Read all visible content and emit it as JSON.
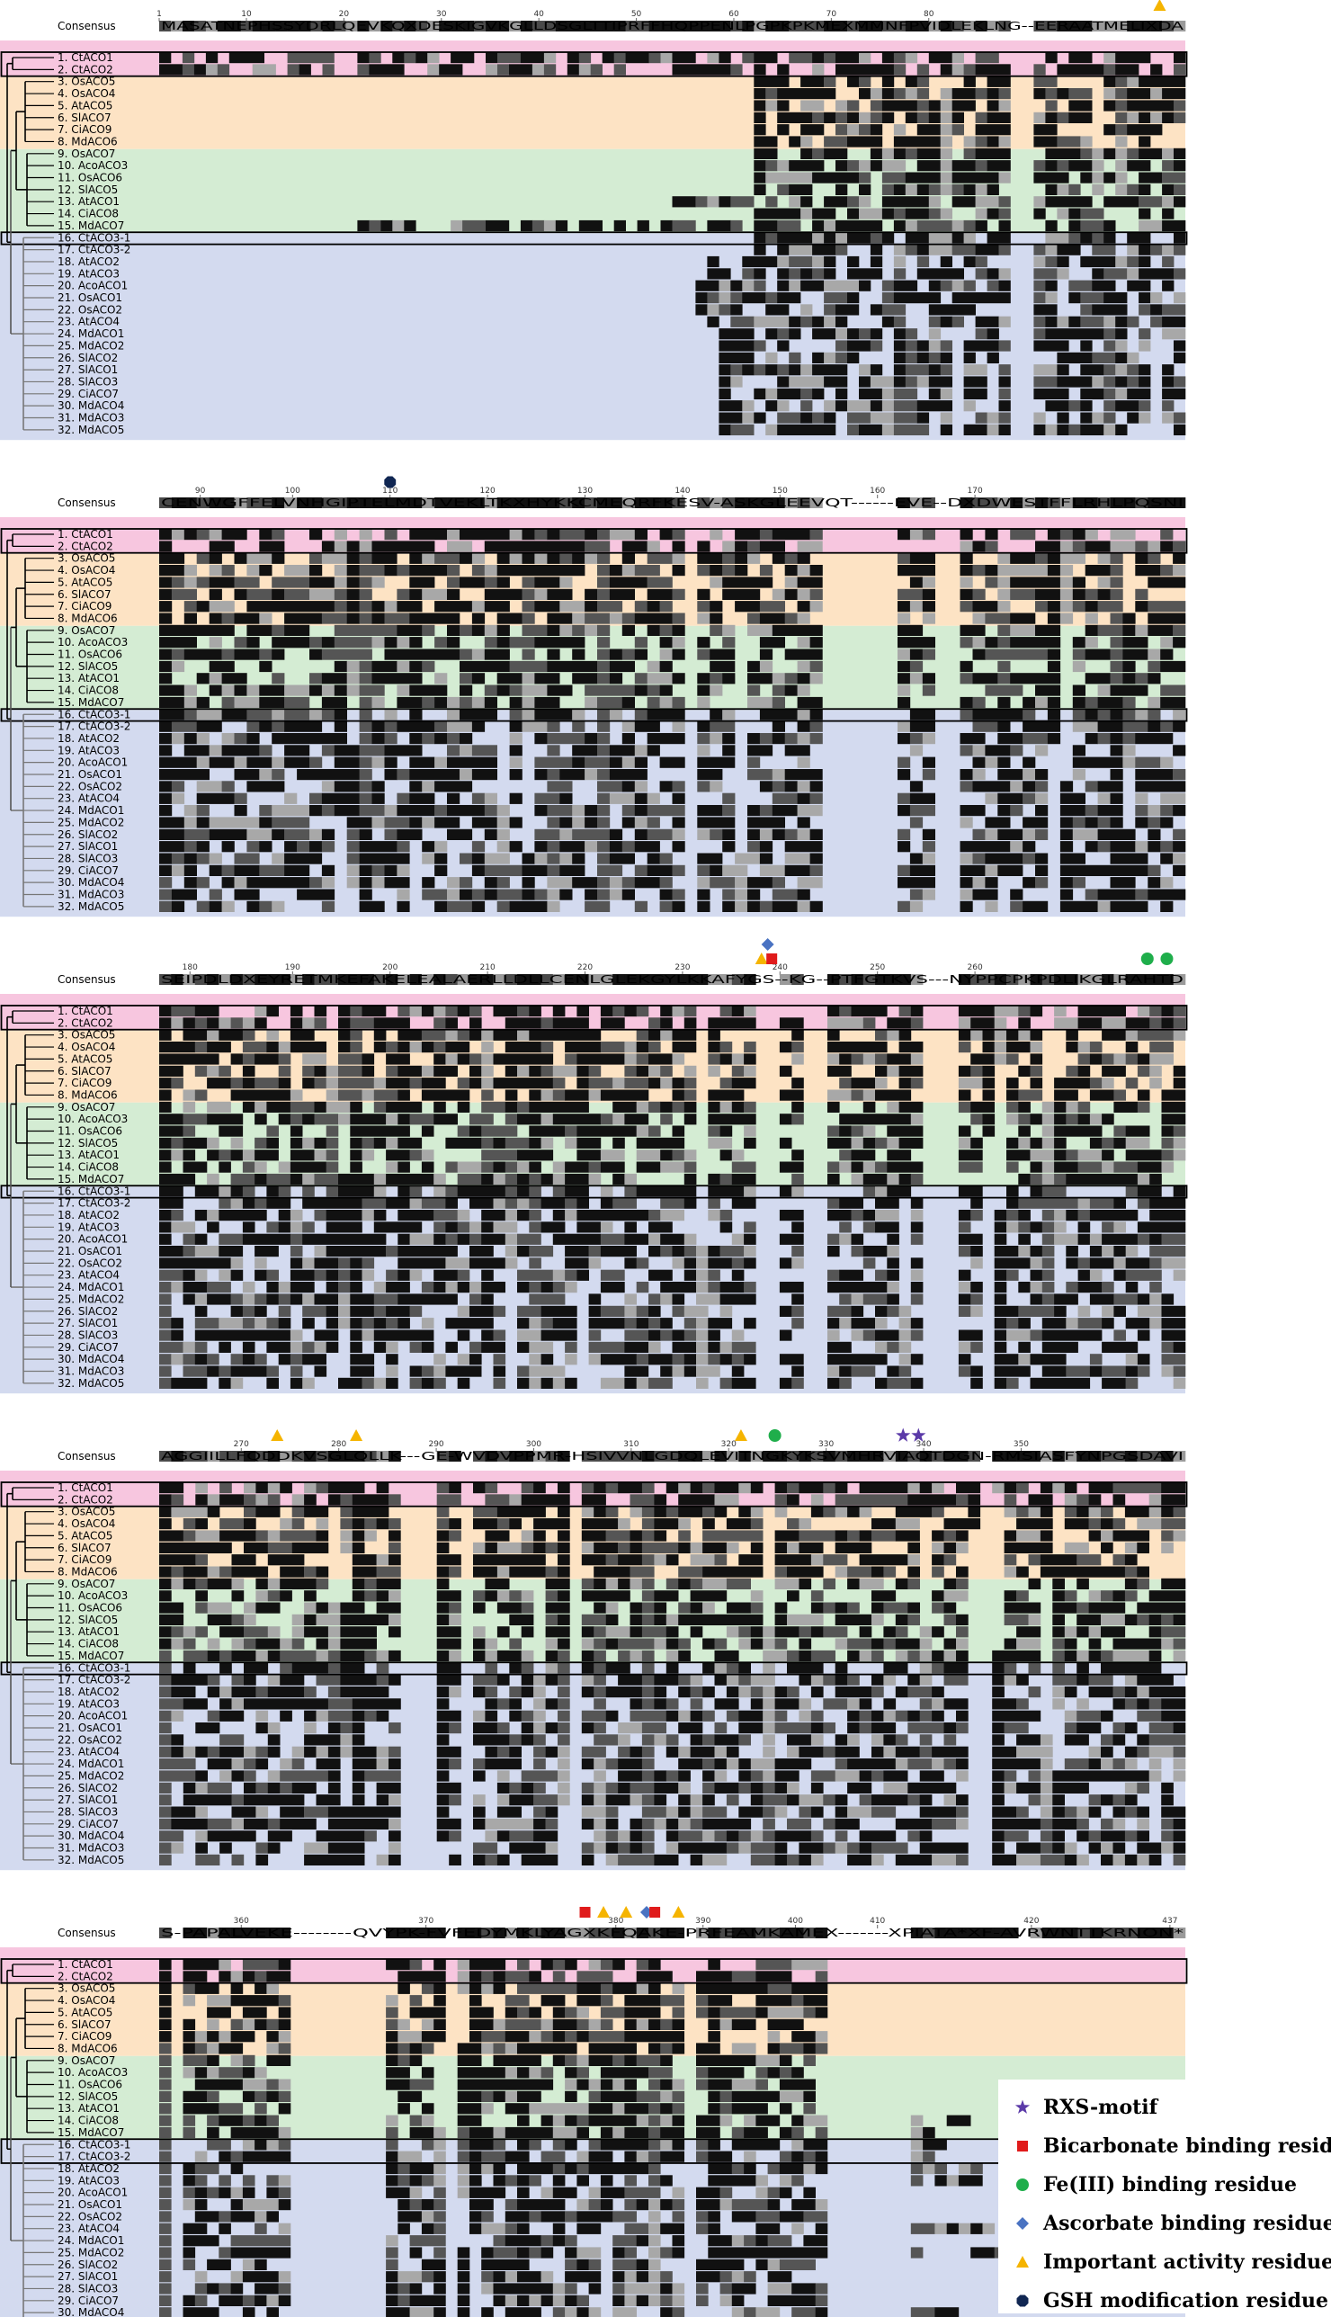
{
  "figure": {
    "consensus_label": "Consensus",
    "sequences": [
      "1. CtACO1",
      "2. CtACO2",
      "3. OsACO5",
      "4. OsACO4",
      "5. AtACO5",
      "6. SlACO7",
      "7. CiACO9",
      "8. MdACO6",
      "9. OsACO7",
      "10. AcoACO3",
      "11. OsACO6",
      "12. SlACO5",
      "13. AtACO1",
      "14. CiACO8",
      "15. MdACO7",
      "16. CtACO3-1",
      "17. CtACO3-2",
      "18. AtACO2",
      "19. AtACO3",
      "20. AcoACO1",
      "21. OsACO1",
      "22. OsACO2",
      "23. AtACO4",
      "24. MdACO1",
      "25. MdACO2",
      "26. SlACO2",
      "27. SlACO1",
      "28. SlACO3",
      "29. CiACO7",
      "30. MdACO4",
      "31. MdACO3",
      "32. MdACO5"
    ],
    "group_colors": {
      "pink": "#f7c6df",
      "orange": "#fde3c4",
      "green": "#d4ecd3",
      "blue": "#d3daef"
    },
    "blocks": [
      {
        "ticks": [
          "1",
          "10",
          "20",
          "30",
          "40",
          "50",
          "60",
          "70",
          "80"
        ],
        "consensus": "MASATNEPHSSYDRLQEVKQXDESKIGVKGLLDSGLTTIPRFFHQPPENLPGPKPKMEXMMNFPVIDLEKLNG--EERAATMELIXDA"
      },
      {
        "ticks": [
          "90",
          "100",
          "110",
          "120",
          "130",
          "140",
          "150",
          "160",
          "170"
        ],
        "consensus": "CENWGFFELVNHGIPTELMDTVEKLTKXHYKKCMEQRFKESV-ASKGLEEVQT------EVE--DXDWESTFFLRHLPQSNI"
      },
      {
        "ticks": [
          "180",
          "190",
          "200",
          "210",
          "220",
          "230",
          "240",
          "250",
          "260"
        ],
        "consensus": "SEIPDLDXEYRETMKEFAKELEALAERLLDLLCENLGLEKGYLKKAFYGS--KG--PTFGTKVS---NYPPCPKPDLIKGLRAHTD"
      },
      {
        "ticks": [
          "270",
          "280",
          "290",
          "300",
          "310",
          "320",
          "330",
          "340",
          "350"
        ],
        "consensus": "AGGIILLFQDDKVSGLQLLK---GE-WVDVPPMR-HSIVVNLGDQLEVITNGKYKSVMHRVIAQTDGN-RMSIASFYNPGSDAVI"
      },
      {
        "ticks": [
          "360",
          "370",
          "380",
          "390",
          "400",
          "410",
          "420",
          "437"
        ],
        "consensus": "S-PAPALVEKE--------QVYPK-FVFEDYMKLYAGXKFQAKE-PRFEAMKAMEX-------XPIATA*XF-AVRWNTTKRNON*"
      }
    ],
    "legend": {
      "items": [
        {
          "label": "RXS-motif",
          "symbol": "purple-star-icon",
          "color": "#5b3aa8"
        },
        {
          "label": "Bicarbonate binding residue",
          "symbol": "red-square-icon",
          "color": "#e01b1b"
        },
        {
          "label": "Fe(III) binding residue",
          "symbol": "green-circle-icon",
          "color": "#1fae4b"
        },
        {
          "label": "Ascorbate binding residue",
          "symbol": "blue-diamond-icon",
          "color": "#4a73c2"
        },
        {
          "label": "Important activity residue",
          "symbol": "yellow-triangle-icon",
          "color": "#f5b400"
        },
        {
          "label": "GSH modification residue",
          "symbol": "navy-octagon-icon",
          "color": "#102652"
        }
      ]
    }
  }
}
